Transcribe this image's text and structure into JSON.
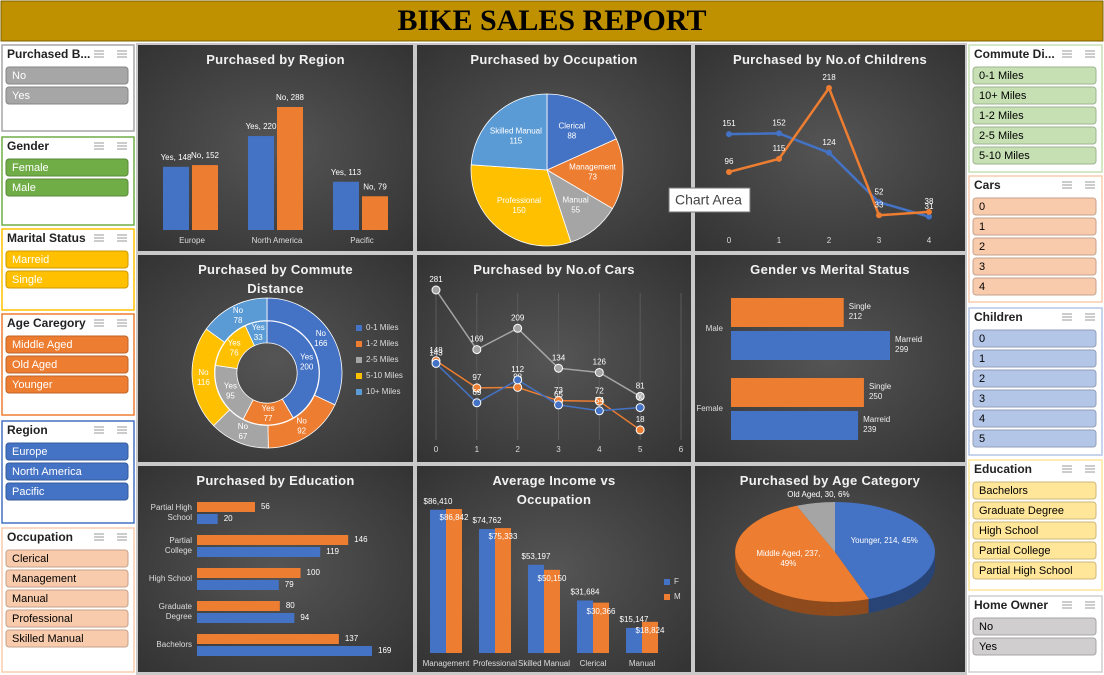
{
  "title": "BIKE SALES REPORT",
  "tooltip": "Chart Area",
  "slicers": [
    {
      "title": "Purchased B...",
      "color": "#a6a6a6",
      "text_color": "#ffffff",
      "items": [
        "No",
        "Yes"
      ]
    },
    {
      "title": "Gender",
      "color": "#70ad47",
      "text_color": "#ffffff",
      "items": [
        "Female",
        "Male"
      ]
    },
    {
      "title": "Marital Status",
      "color": "#ffc000",
      "text_color": "#ffffff",
      "items": [
        "Marreid",
        "Single"
      ]
    },
    {
      "title": "Age Caregory",
      "color": "#ed7d31",
      "text_color": "#ffffff",
      "items": [
        "Middle Aged",
        "Old Aged",
        "Younger"
      ]
    },
    {
      "title": "Region",
      "color": "#4472c4",
      "text_color": "#ffffff",
      "items": [
        "Europe",
        "North America",
        "Pacific"
      ]
    },
    {
      "title": "Occupation",
      "color": "#f8cbad",
      "text_color": "#000000",
      "items": [
        "Clerical",
        "Management",
        "Manual",
        "Professional",
        "Skilled Manual"
      ]
    },
    {
      "title": "Commute Di...",
      "color": "#c6e0b4",
      "text_color": "#000000",
      "items": [
        "0-1 Miles",
        "10+ Miles",
        "1-2 Miles",
        "2-5 Miles",
        "5-10 Miles"
      ]
    },
    {
      "title": "Cars",
      "color": "#f8cbad",
      "text_color": "#000000",
      "items": [
        0,
        1,
        2,
        3,
        4
      ]
    },
    {
      "title": "Children",
      "color": "#b4c6e7",
      "text_color": "#000000",
      "items": [
        0,
        1,
        2,
        3,
        4,
        5
      ]
    },
    {
      "title": "Education",
      "color": "#ffe699",
      "text_color": "#000000",
      "items": [
        "Bachelors",
        "Graduate Degree",
        "High School",
        "Partial College",
        "Partial High School"
      ]
    },
    {
      "title": "Home Owner",
      "color": "#d0cece",
      "text_color": "#000000",
      "items": [
        "No",
        "Yes"
      ]
    }
  ],
  "chart_data": [
    {
      "type": "bar",
      "title": "Purchased by Region",
      "categories": [
        "Europe",
        "North America",
        "Pacific"
      ],
      "series": [
        {
          "color": "#4472c4",
          "values": [
            148,
            220,
            113
          ],
          "value_labels": [
            "Yes, 148",
            "Yes, 220",
            "Yes, 113"
          ]
        },
        {
          "color": "#ed7d31",
          "values": [
            152,
            288,
            79
          ],
          "value_labels": [
            "No, 152",
            "No, 288",
            "No, 79"
          ]
        }
      ]
    },
    {
      "type": "pie",
      "title": "Purchased by Occupation",
      "categories": [
        "Clerical",
        "Management",
        "Manual",
        "Professional",
        "Skilled Manual"
      ],
      "values": [
        88,
        73,
        55,
        150,
        115
      ],
      "colors": [
        "#4472c4",
        "#ed7d31",
        "#a5a5a5",
        "#ffc000",
        "#5b9bd5"
      ]
    },
    {
      "type": "line",
      "title": "Purchased by No.of Childrens",
      "categories": [
        0,
        1,
        2,
        3,
        4
      ],
      "series": [
        {
          "color": "#4472c4",
          "values": [
            151,
            152,
            124,
            52,
            31
          ]
        },
        {
          "color": "#ed7d31",
          "values": [
            96,
            115,
            218,
            33,
            38
          ]
        }
      ]
    },
    {
      "type": "doughnut",
      "title": "Purchased by Commute Distance",
      "categories": [
        "0-1 Miles",
        "1-2 Miles",
        "2-5 Miles",
        "5-10 Miles",
        "10+ Miles"
      ],
      "colors": [
        "#4472c4",
        "#ed7d31",
        "#a5a5a5",
        "#ffc000",
        "#5b9bd5"
      ],
      "series": [
        {
          "name": "No",
          "values": [
            166,
            92,
            67,
            116,
            78
          ]
        },
        {
          "name": "Yes",
          "values": [
            200,
            77,
            95,
            76,
            33
          ]
        }
      ]
    },
    {
      "type": "scatter-line",
      "title": "Purchased by No.of Cars",
      "x": [
        0,
        1,
        2,
        3,
        4,
        5
      ],
      "xlim": [
        0,
        6
      ],
      "xticks": [
        0,
        1,
        2,
        3,
        4,
        5,
        6
      ],
      "grid": true,
      "series": [
        {
          "color": "#a5a5a5",
          "values": [
            281,
            169,
            209,
            134,
            126,
            81
          ]
        },
        {
          "color": "#ed7d31",
          "values": [
            148,
            97,
            98,
            73,
            72,
            18
          ]
        },
        {
          "color": "#4472c4",
          "values": [
            143,
            69,
            112,
            65,
            54,
            60
          ]
        }
      ]
    },
    {
      "type": "hbar",
      "title": "Gender vs Merital Status",
      "categories": [
        "Female",
        "Male"
      ],
      "series": [
        {
          "name": "Marreid",
          "color": "#4472c4",
          "values": [
            239,
            299
          ]
        },
        {
          "name": "Single",
          "color": "#ed7d31",
          "values": [
            250,
            212
          ]
        }
      ]
    },
    {
      "type": "hbar-pair",
      "title": "Purchased by Education",
      "categories": [
        "Bachelors",
        "Graduate Degree",
        "High School",
        "Partial College",
        "Partial High School"
      ],
      "series": [
        {
          "color": "#4472c4",
          "values": [
            169,
            94,
            79,
            119,
            20
          ]
        },
        {
          "color": "#ed7d31",
          "values": [
            137,
            80,
            100,
            146,
            56
          ]
        }
      ]
    },
    {
      "type": "bar-legend",
      "title": "Average Income vs Occupation",
      "categories": [
        "Management",
        "Professional",
        "Skilled Manual",
        "Clerical",
        "Manual"
      ],
      "series": [
        {
          "name": "F",
          "color": "#4472c4",
          "values": [
            86410,
            74762,
            53197,
            31684,
            15147
          ],
          "value_labels": [
            "$86,410",
            "$74,762",
            "$53,197",
            "$31,684",
            "$15,147"
          ]
        },
        {
          "name": "M",
          "color": "#ed7d31",
          "values": [
            86842,
            75333,
            50150,
            30366,
            18824
          ],
          "value_labels": [
            "$86,842",
            "$75,333",
            "$50,150",
            "$30,366",
            "$18,824"
          ]
        }
      ]
    },
    {
      "type": "pie3d",
      "title": "Purchased by Age Category",
      "categories": [
        "Younger",
        "Middle Aged",
        "Old Aged"
      ],
      "values": [
        214,
        237,
        30
      ],
      "value_labels": [
        "Younger, 214, 45%",
        "Middle Aged, 237, 49%",
        "Old Aged, 30, 6%"
      ],
      "colors": [
        "#4472c4",
        "#ed7d31",
        "#a5a5a5"
      ]
    }
  ]
}
